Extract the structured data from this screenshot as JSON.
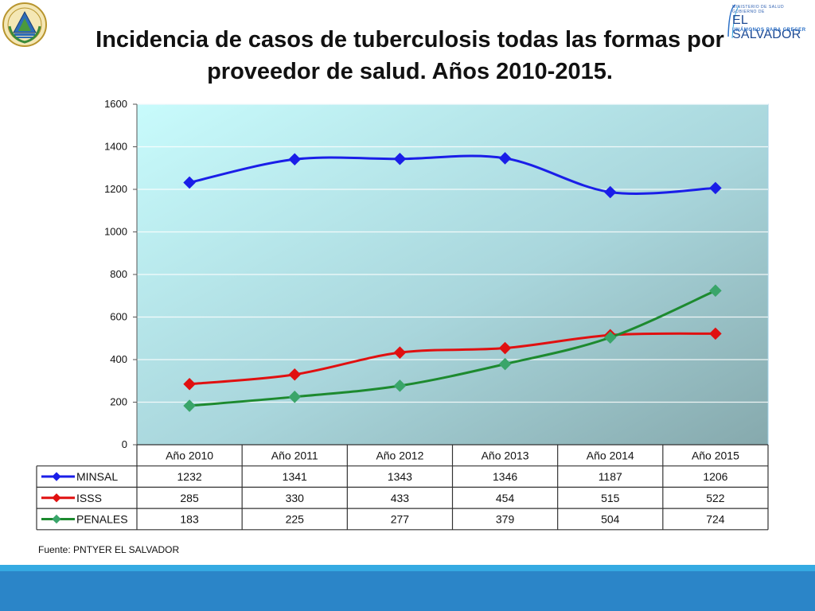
{
  "slide": {
    "title": "Incidencia de casos de tuberculosis todas las formas por proveedor de salud. Años 2010-2015.",
    "source": "Fuente: PNTYER EL SALVADOR"
  },
  "logo": {
    "line1": "MINISTERIO DE SALUD",
    "line2": "GOBIERNO DE",
    "line3": "EL SALVADOR",
    "line4": "UNÁMONOS PARA CRECER"
  },
  "chart_data": {
    "type": "line",
    "title": "",
    "xlabel": "",
    "ylabel": "",
    "categories": [
      "Año 2010",
      "Año 2011",
      "Año 2012",
      "Año 2013",
      "Año 2014",
      "Año 2015"
    ],
    "ylim": [
      0,
      1600
    ],
    "yticks": [
      0,
      200,
      400,
      600,
      800,
      1000,
      1200,
      1400,
      1600
    ],
    "grid": true,
    "legend": "data-table-below",
    "series": [
      {
        "name": "MINSAL",
        "values": [
          1232,
          1341,
          1343,
          1346,
          1187,
          1206
        ],
        "color": "#1a1ee8"
      },
      {
        "name": "ISSS",
        "values": [
          285,
          330,
          433,
          454,
          515,
          522
        ],
        "color": "#e01010"
      },
      {
        "name": "PENALES",
        "values": [
          183,
          225,
          277,
          379,
          504,
          724
        ],
        "color": "#1d8a2f",
        "marker_color": "#3aa56a"
      }
    ]
  }
}
